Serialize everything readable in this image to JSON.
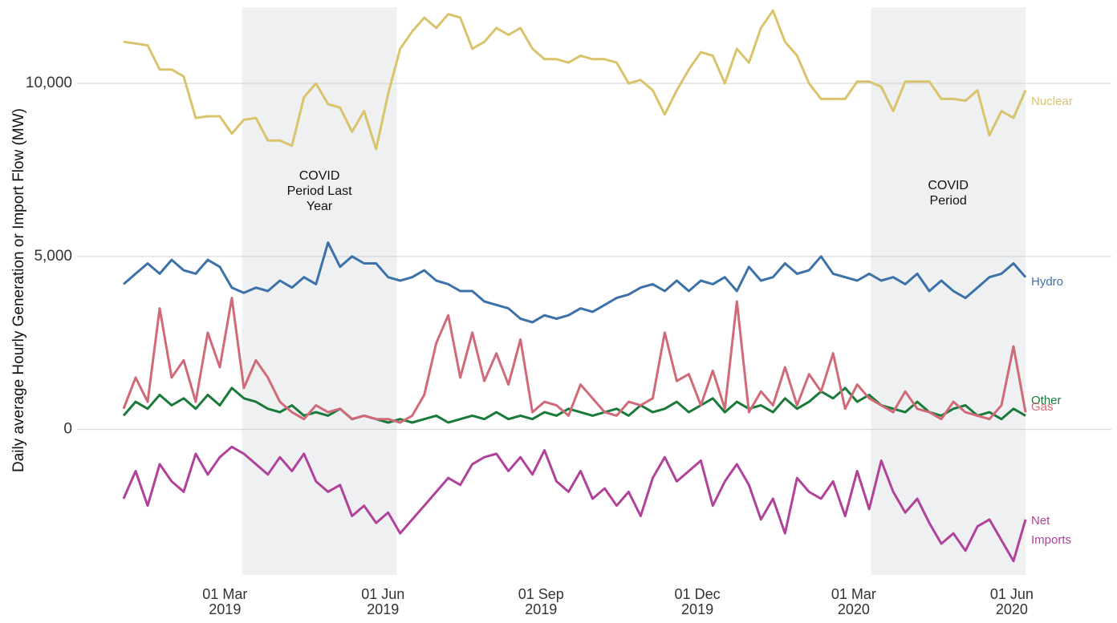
{
  "chart_data": {
    "type": "line",
    "ylabel": "Daily average Hourly Generation or Import Flow (MW)",
    "xlim": [
      "2019-01-01",
      "2020-06-09"
    ],
    "ylim": [
      -4200,
      12200
    ],
    "yticks": [
      {
        "value": 0,
        "label": "0"
      },
      {
        "value": 5000,
        "label": "5,000"
      },
      {
        "value": 10000,
        "label": "10,000"
      }
    ],
    "xticks": [
      {
        "value": "2019-03-01",
        "label": "01 Mar 2019"
      },
      {
        "value": "2019-06-01",
        "label": "01 Jun 2019"
      },
      {
        "value": "2019-09-01",
        "label": "01 Sep 2019"
      },
      {
        "value": "2019-12-01",
        "label": "01 Dec 2019"
      },
      {
        "value": "2020-03-01",
        "label": "01 Mar 2020"
      },
      {
        "value": "2020-06-01",
        "label": "01 Jun 2020"
      }
    ],
    "grid": true,
    "periods": [
      {
        "start": "2019-03-11",
        "end": "2019-06-09",
        "label": "COVID Period Last Year"
      },
      {
        "start": "2020-03-11",
        "end": "2020-06-09",
        "label": "COVID Period"
      }
    ],
    "x": [
      "2019-01-01",
      "2019-01-08",
      "2019-01-15",
      "2019-01-22",
      "2019-01-29",
      "2019-02-05",
      "2019-02-12",
      "2019-02-19",
      "2019-02-26",
      "2019-03-05",
      "2019-03-12",
      "2019-03-19",
      "2019-03-26",
      "2019-04-02",
      "2019-04-09",
      "2019-04-16",
      "2019-04-23",
      "2019-04-30",
      "2019-05-07",
      "2019-05-14",
      "2019-05-21",
      "2019-05-28",
      "2019-06-04",
      "2019-06-11",
      "2019-06-18",
      "2019-06-25",
      "2019-07-02",
      "2019-07-09",
      "2019-07-16",
      "2019-07-23",
      "2019-07-30",
      "2019-08-06",
      "2019-08-13",
      "2019-08-20",
      "2019-08-27",
      "2019-09-03",
      "2019-09-10",
      "2019-09-17",
      "2019-09-24",
      "2019-10-01",
      "2019-10-08",
      "2019-10-15",
      "2019-10-22",
      "2019-10-29",
      "2019-11-05",
      "2019-11-12",
      "2019-11-19",
      "2019-11-26",
      "2019-12-03",
      "2019-12-10",
      "2019-12-17",
      "2019-12-24",
      "2019-12-31",
      "2020-01-07",
      "2020-01-14",
      "2020-01-21",
      "2020-01-28",
      "2020-02-04",
      "2020-02-11",
      "2020-02-18",
      "2020-02-25",
      "2020-03-03",
      "2020-03-10",
      "2020-03-17",
      "2020-03-24",
      "2020-03-31",
      "2020-04-07",
      "2020-04-14",
      "2020-04-21",
      "2020-04-28",
      "2020-05-05",
      "2020-05-12",
      "2020-05-19",
      "2020-05-26",
      "2020-06-02",
      "2020-06-09"
    ],
    "series": [
      {
        "name": "Nuclear",
        "color": "#d9c46c",
        "values": [
          11200,
          11150,
          11100,
          10400,
          10400,
          10200,
          9000,
          9050,
          9050,
          8550,
          8950,
          9000,
          8350,
          8350,
          8200,
          9600,
          10000,
          9400,
          9300,
          8600,
          9200,
          8100,
          9700,
          11000,
          11500,
          11900,
          11600,
          12000,
          11900,
          11000,
          11200,
          11600,
          11400,
          11600,
          11000,
          10700,
          10700,
          10600,
          10800,
          10700,
          10700,
          10600,
          10000,
          10100,
          9800,
          9100,
          9800,
          10400,
          10900,
          10800,
          10000,
          11000,
          10600,
          11600,
          12100,
          11200,
          10800,
          10000,
          9550,
          9550,
          9550,
          10050,
          10050,
          9900,
          9200,
          10050,
          10050,
          10050,
          9550,
          9550,
          9500,
          9800,
          8500,
          9200,
          9000,
          9800
        ]
      },
      {
        "name": "Hydro",
        "color": "#3c72a8",
        "values": [
          4200,
          4500,
          4800,
          4500,
          4900,
          4600,
          4500,
          4900,
          4700,
          4100,
          3950,
          4100,
          4000,
          4300,
          4100,
          4400,
          4200,
          5400,
          4700,
          5000,
          4800,
          4800,
          4400,
          4300,
          4400,
          4600,
          4300,
          4200,
          4000,
          4000,
          3700,
          3600,
          3500,
          3200,
          3100,
          3300,
          3200,
          3300,
          3500,
          3400,
          3600,
          3800,
          3900,
          4100,
          4200,
          4000,
          4300,
          4000,
          4300,
          4200,
          4400,
          4000,
          4700,
          4300,
          4400,
          4800,
          4500,
          4600,
          5000,
          4500,
          4400,
          4300,
          4500,
          4300,
          4400,
          4200,
          4500,
          4000,
          4300,
          4000,
          3800,
          4100,
          4400,
          4500,
          4800,
          4400
        ]
      },
      {
        "name": "Other",
        "color": "#1a7a3a",
        "values": [
          400,
          800,
          600,
          1000,
          700,
          900,
          600,
          1000,
          700,
          1200,
          900,
          800,
          600,
          500,
          700,
          400,
          500,
          400,
          600,
          300,
          400,
          300,
          200,
          300,
          200,
          300,
          400,
          200,
          300,
          400,
          300,
          500,
          300,
          400,
          300,
          500,
          400,
          600,
          500,
          400,
          500,
          600,
          400,
          700,
          500,
          600,
          800,
          500,
          700,
          900,
          500,
          800,
          600,
          700,
          500,
          900,
          600,
          800,
          1100,
          900,
          1200,
          800,
          1000,
          700,
          600,
          500,
          800,
          500,
          400,
          600,
          700,
          400,
          500,
          300,
          600,
          400
        ]
      },
      {
        "name": "Gas",
        "color": "#d06a78",
        "values": [
          600,
          1500,
          800,
          3500,
          1500,
          2000,
          800,
          2800,
          1800,
          3800,
          1200,
          2000,
          1500,
          800,
          500,
          300,
          700,
          500,
          600,
          300,
          400,
          300,
          300,
          200,
          400,
          1000,
          2500,
          3300,
          1500,
          2800,
          1400,
          2200,
          1300,
          2600,
          500,
          800,
          700,
          400,
          1300,
          900,
          500,
          400,
          800,
          700,
          900,
          2800,
          1400,
          1600,
          700,
          1700,
          600,
          3700,
          500,
          1100,
          700,
          1800,
          700,
          1600,
          1100,
          2200,
          600,
          1300,
          900,
          700,
          500,
          1100,
          600,
          500,
          300,
          800,
          500,
          400,
          300,
          700,
          2400,
          500
        ]
      },
      {
        "name": "Net Imports",
        "color": "#b0429a",
        "values": [
          -2000,
          -1200,
          -2200,
          -1000,
          -1500,
          -1800,
          -700,
          -1300,
          -800,
          -500,
          -700,
          -1000,
          -1300,
          -800,
          -1200,
          -700,
          -1500,
          -1800,
          -1600,
          -2500,
          -2200,
          -2700,
          -2400,
          -3000,
          -2600,
          -2200,
          -1800,
          -1400,
          -1600,
          -1000,
          -800,
          -700,
          -1200,
          -800,
          -1300,
          -600,
          -1500,
          -1800,
          -1200,
          -2000,
          -1700,
          -2200,
          -1800,
          -2500,
          -1400,
          -800,
          -1500,
          -1200,
          -900,
          -2200,
          -1500,
          -1000,
          -1600,
          -2600,
          -2000,
          -3000,
          -1400,
          -1800,
          -2000,
          -1500,
          -2500,
          -1200,
          -2300,
          -900,
          -1800,
          -2400,
          -2000,
          -2700,
          -3300,
          -3000,
          -3500,
          -2800,
          -2600,
          -3200,
          -3800,
          -2600
        ]
      }
    ]
  }
}
